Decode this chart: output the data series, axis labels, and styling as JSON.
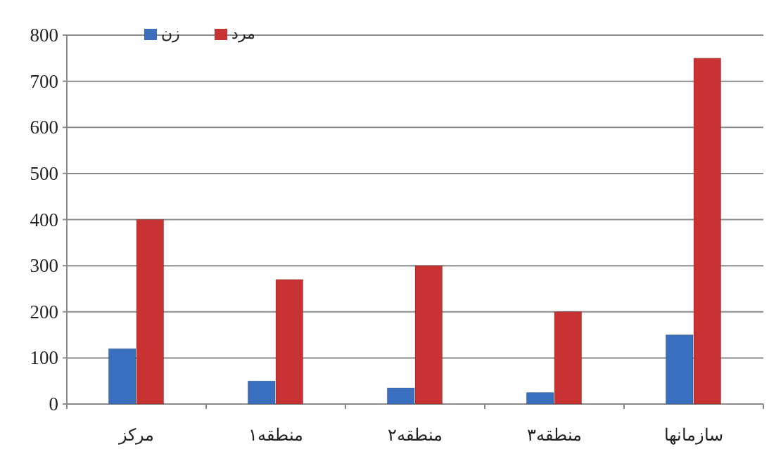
{
  "chart_data": {
    "type": "bar",
    "categories": [
      "مرکز",
      "منطقه۱",
      "منطقه۲",
      "منطقه۳",
      "سازمانها"
    ],
    "series": [
      {
        "name": "زن",
        "color": "#3a6fc0",
        "values": [
          120,
          50,
          35,
          25,
          150
        ]
      },
      {
        "name": "مرد",
        "color": "#c83232",
        "values": [
          400,
          270,
          300,
          200,
          750
        ]
      }
    ],
    "ylim": [
      0,
      800
    ],
    "yticks": [
      0,
      100,
      200,
      300,
      400,
      500,
      600,
      700,
      800
    ],
    "grid": "y",
    "legend": "top left"
  }
}
